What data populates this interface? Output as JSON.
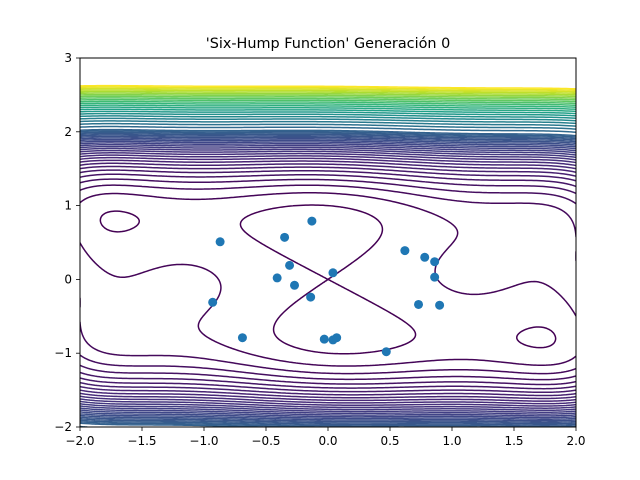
{
  "chart_data": {
    "type": "scatter",
    "subtype": "contour-with-scatter",
    "title": "'Six-Hump Function' Generación 0",
    "xlabel": "",
    "ylabel": "",
    "xlim": [
      -2.0,
      2.0
    ],
    "ylim": [
      -2,
      3
    ],
    "x_ticks": [
      -2.0,
      -1.5,
      -1.0,
      -0.5,
      0.0,
      0.5,
      1.0,
      1.5,
      2.0
    ],
    "x_tick_labels": [
      "−2.0",
      "−1.5",
      "−1.0",
      "−0.5",
      "0.0",
      "0.5",
      "1.0",
      "1.5",
      "2.0"
    ],
    "y_ticks": [
      -2,
      -1,
      0,
      1,
      2,
      3
    ],
    "y_tick_labels": [
      "−2",
      "−1",
      "0",
      "1",
      "2",
      "3"
    ],
    "grid": false,
    "legend": "none",
    "contour": {
      "function": "six-hump camel: (4 - 2.1x^2 + x^4/3)x^2 + xy + (-4 + 4y^2)y^2",
      "levels": [
        0,
        2,
        4,
        6,
        8,
        10,
        12,
        14,
        16,
        18,
        20,
        22,
        24,
        26,
        28,
        30,
        32,
        34,
        36,
        38,
        40,
        42,
        44,
        46,
        48,
        50,
        55,
        60,
        65,
        70,
        75,
        80,
        85,
        90,
        95,
        100,
        105,
        110,
        115,
        120,
        125,
        130,
        135,
        140,
        145,
        150,
        155,
        160
      ],
      "colormap": "viridis"
    },
    "series": [
      {
        "marker_color": "#1f77b4",
        "points": [
          {
            "x": -0.87,
            "y": 0.51
          },
          {
            "x": -0.35,
            "y": 0.57
          },
          {
            "x": -0.13,
            "y": 0.79
          },
          {
            "x": -0.31,
            "y": 0.19
          },
          {
            "x": -0.41,
            "y": 0.02
          },
          {
            "x": -0.27,
            "y": -0.08
          },
          {
            "x": -0.93,
            "y": -0.31
          },
          {
            "x": -0.69,
            "y": -0.79
          },
          {
            "x": -0.14,
            "y": -0.24
          },
          {
            "x": 0.04,
            "y": 0.09
          },
          {
            "x": -0.03,
            "y": -0.81
          },
          {
            "x": 0.04,
            "y": -0.82
          },
          {
            "x": 0.07,
            "y": -0.79
          },
          {
            "x": 0.47,
            "y": -0.98
          },
          {
            "x": 0.62,
            "y": 0.39
          },
          {
            "x": 0.78,
            "y": 0.3
          },
          {
            "x": 0.86,
            "y": 0.24
          },
          {
            "x": 0.86,
            "y": 0.03
          },
          {
            "x": 0.73,
            "y": -0.34
          },
          {
            "x": 0.9,
            "y": -0.35
          }
        ]
      }
    ]
  }
}
